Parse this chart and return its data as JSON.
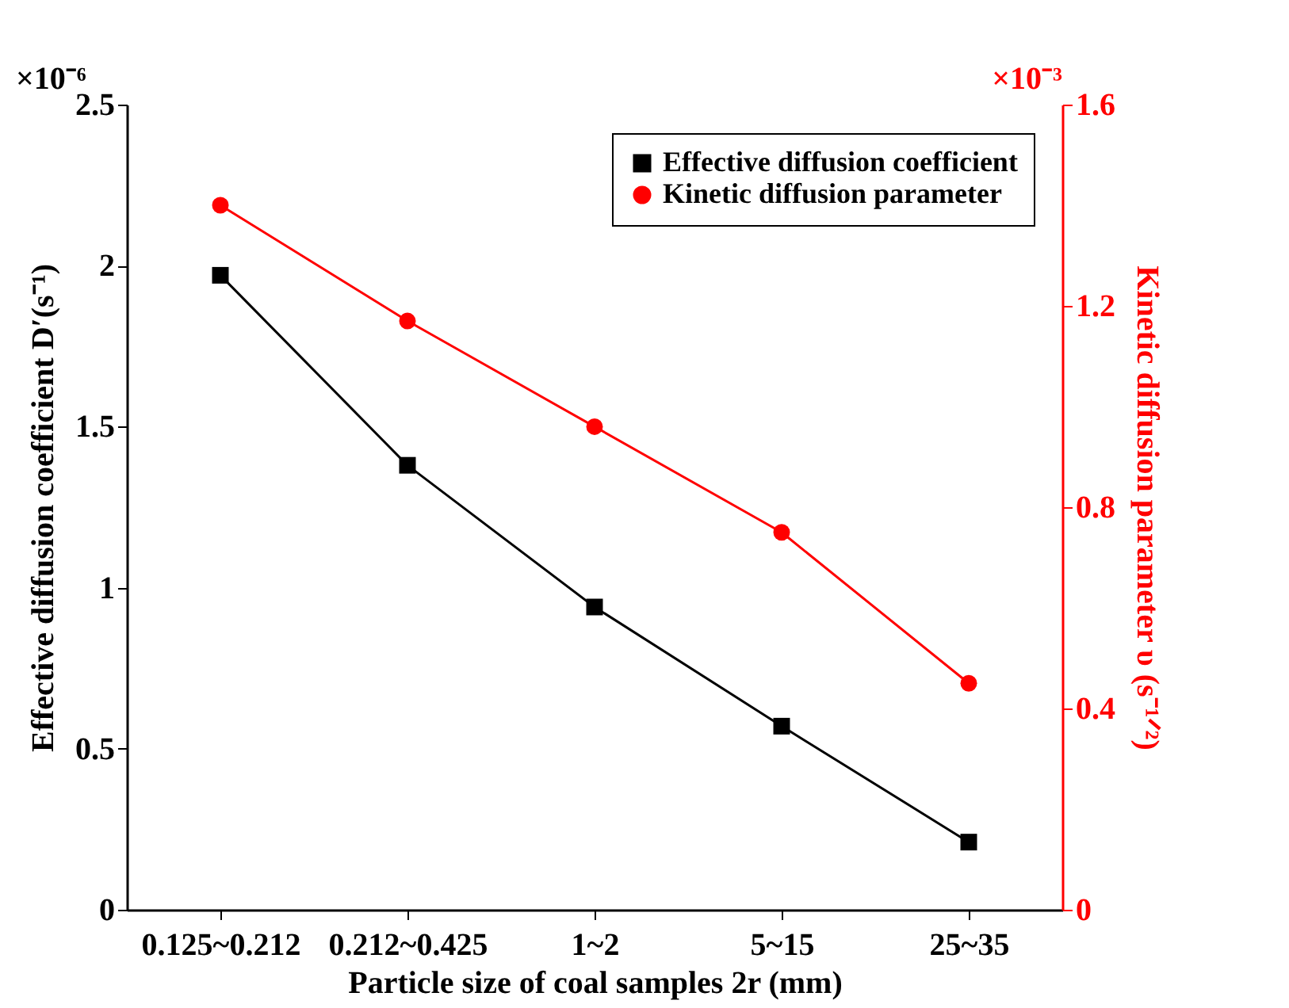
{
  "chart_data": {
    "type": "line",
    "categories": [
      "0.125~0.212",
      "0.212~0.425",
      "1~2",
      "5~15",
      "25~35"
    ],
    "series": [
      {
        "name": "Effective diffusion coefficient",
        "color": "#000000",
        "marker": "square",
        "values": [
          1.97,
          1.38,
          0.94,
          0.57,
          0.21
        ]
      },
      {
        "name": "Kinetic diffusion parameter",
        "color": "#ff0000",
        "marker": "circle",
        "axis": "y2",
        "values": [
          1.4,
          1.17,
          0.96,
          0.75,
          0.45
        ]
      }
    ],
    "xlabel": "Particle size of coal samples 2r (mm)",
    "ylabel": "Effective diffusion coefficient D′(s⁻¹)",
    "y2label": "Kinetic diffusion parameter υ (s⁻¹ᐟ²)",
    "ylim": [
      0,
      2.5
    ],
    "yticks": [
      0,
      0.5,
      1,
      1.5,
      2,
      2.5
    ],
    "y2lim": [
      0,
      1.6
    ],
    "y2ticks": [
      0,
      0.4,
      0.8,
      1.2,
      1.6
    ],
    "annotations": [
      "×10⁻⁶",
      "×10⁻³"
    ],
    "legend": "top right",
    "grid": false
  }
}
